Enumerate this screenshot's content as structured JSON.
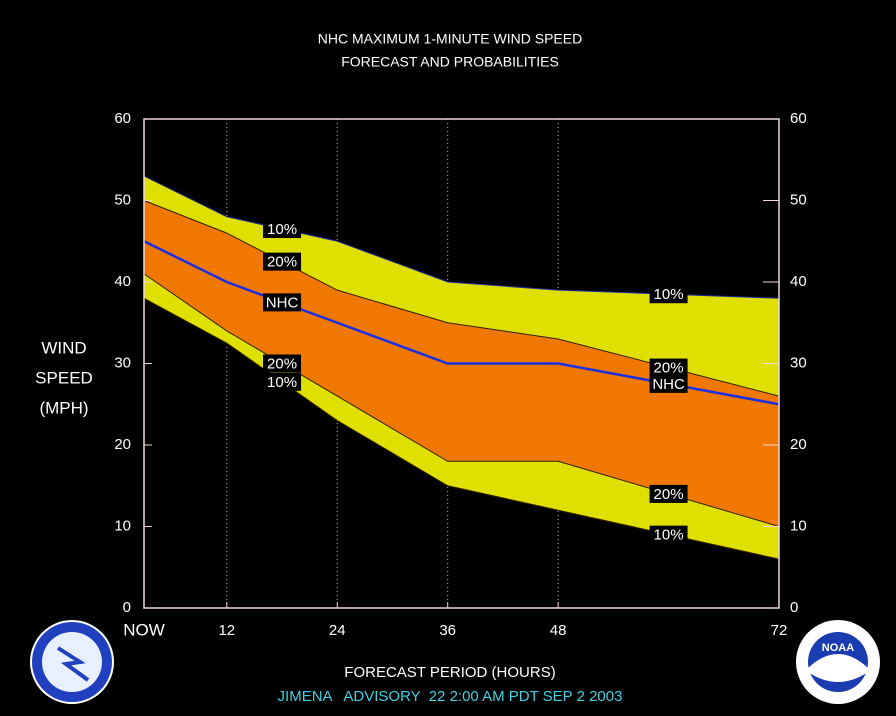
{
  "chart_data": {
    "type": "band",
    "title": "NHC MAXIMUM 1-MINUTE WIND SPEED",
    "subtitle": "FORECAST AND PROBABILITIES",
    "ylabel": [
      "WIND",
      "SPEED",
      "(MPH)"
    ],
    "xlabel": "FORECAST PERIOD (HOURS)",
    "footer": "JIMENA   ADVISORY  22 2:00 AM PDT SEP 2 2003",
    "logo_text": "NOAA",
    "x": [
      3,
      12,
      24,
      36,
      48,
      72
    ],
    "xlim": [
      3,
      72
    ],
    "xticks": [
      {
        "value": 3,
        "label": "NOW"
      },
      12,
      24,
      36,
      48,
      72
    ],
    "ylim": [
      0,
      60
    ],
    "yticks": [
      0,
      10,
      20,
      30,
      40,
      50,
      60
    ],
    "grid": "x",
    "bands": [
      {
        "name": "10%",
        "color": "#e0e000",
        "upper": [
          53,
          48,
          45,
          40,
          39,
          38
        ],
        "lower": [
          38,
          32.5,
          23,
          15,
          12,
          6
        ]
      },
      {
        "name": "20%",
        "color": "#f07800",
        "upper": [
          50,
          46,
          39,
          35,
          33,
          26
        ],
        "lower": [
          41,
          34,
          26,
          18,
          18,
          10
        ]
      }
    ],
    "series": [
      {
        "name": "NHC",
        "color": "#1a2ee8",
        "values": [
          45,
          40,
          35,
          30,
          30,
          25
        ]
      }
    ]
  }
}
